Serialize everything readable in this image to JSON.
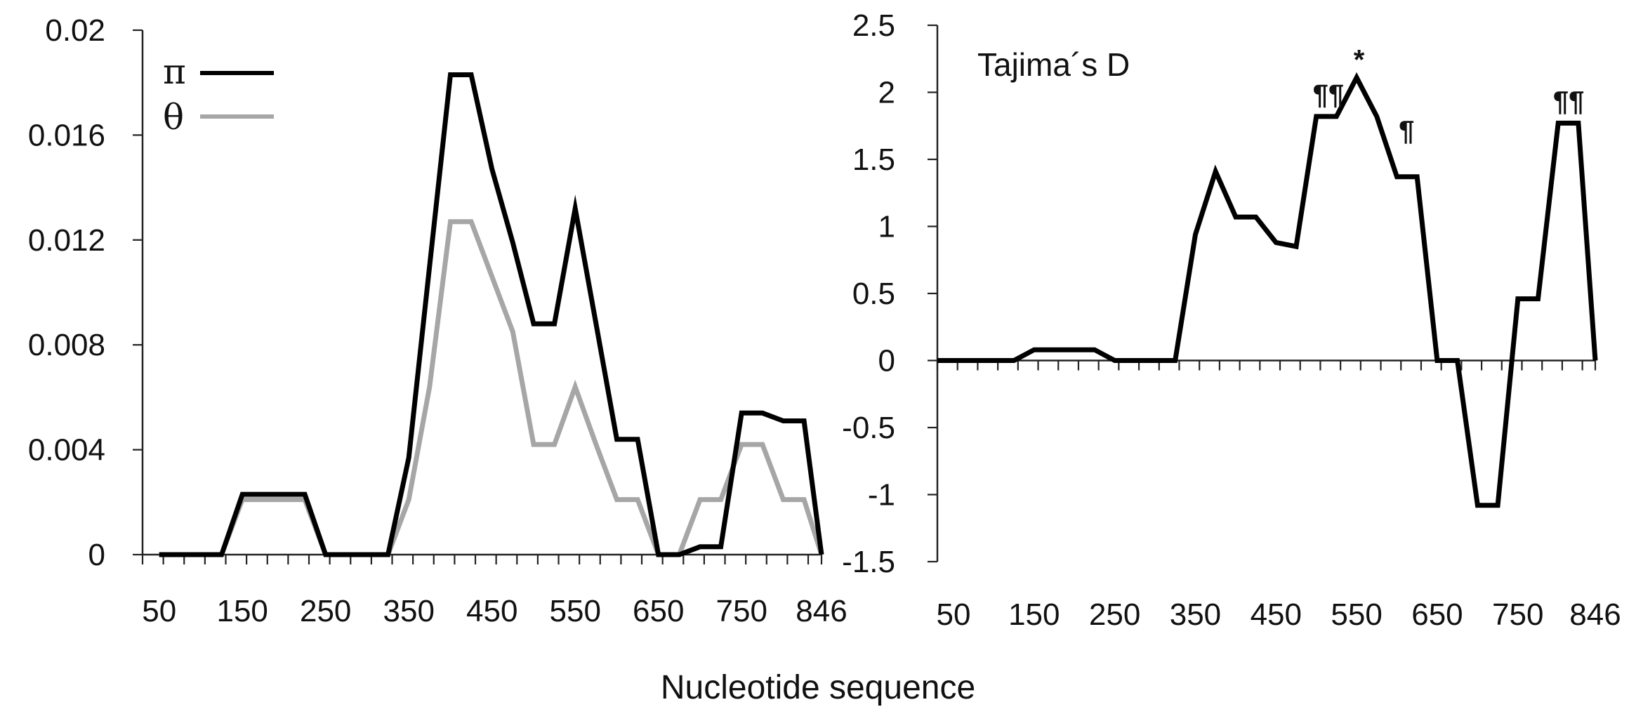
{
  "xlabel": "Nucleotide sequence",
  "chart_data": [
    {
      "type": "line",
      "title": "",
      "xlabel": "",
      "ylabel": "",
      "xlim": [
        30,
        846
      ],
      "ylim": [
        0,
        0.02
      ],
      "yticks": [
        "0",
        "0.004",
        "0.008",
        "0.012",
        "0.016",
        "0.02"
      ],
      "yticks_values": [
        0,
        0.004,
        0.008,
        0.012,
        0.016,
        0.02
      ],
      "xtick_labels": [
        "50",
        "150",
        "250",
        "350",
        "450",
        "550",
        "650",
        "750",
        "846"
      ],
      "xtick_values": [
        50,
        150,
        250,
        350,
        450,
        550,
        650,
        750,
        846
      ],
      "minor_xticks": [
        30,
        55,
        80,
        105,
        130,
        155,
        180,
        205,
        230,
        255,
        280,
        305,
        330,
        355,
        380,
        405,
        430,
        455,
        480,
        505,
        530,
        555,
        580,
        605,
        630,
        655,
        680,
        705,
        730,
        755,
        780,
        805,
        830,
        846
      ],
      "legend_placement": "top-left",
      "grid": false,
      "series": [
        {
          "name": "π",
          "color": "#000000",
          "x": [
            50,
            75,
            100,
            125,
            150,
            175,
            200,
            225,
            250,
            275,
            300,
            325,
            350,
            375,
            400,
            425,
            450,
            475,
            500,
            525,
            550,
            575,
            600,
            625,
            650,
            675,
            700,
            725,
            750,
            775,
            800,
            825,
            846
          ],
          "y": [
            0,
            0,
            0,
            0,
            0.0023,
            0.0023,
            0.0023,
            0.0023,
            0,
            0,
            0,
            0,
            0.0037,
            0.011,
            0.0183,
            0.0183,
            0.0147,
            0.0119,
            0.0088,
            0.0088,
            0.0132,
            0.0088,
            0.0044,
            0.0044,
            0,
            0,
            0.0003,
            0.0003,
            0.0054,
            0.0054,
            0.0051,
            0.0051,
            0
          ]
        },
        {
          "name": "θ",
          "color": "#a6a6a6",
          "x": [
            50,
            75,
            100,
            125,
            150,
            175,
            200,
            225,
            250,
            275,
            300,
            325,
            350,
            375,
            400,
            425,
            450,
            475,
            500,
            525,
            550,
            575,
            600,
            625,
            650,
            675,
            700,
            725,
            750,
            775,
            800,
            825,
            846
          ],
          "y": [
            0,
            0,
            0,
            0,
            0.0021,
            0.0021,
            0.0021,
            0.0021,
            0,
            0,
            0,
            0,
            0.0021,
            0.0064,
            0.0127,
            0.0127,
            0.0106,
            0.0085,
            0.0042,
            0.0042,
            0.0064,
            0.0042,
            0.0021,
            0.0021,
            0,
            0,
            0.0021,
            0.0021,
            0.0042,
            0.0042,
            0.0021,
            0.0021,
            0
          ]
        }
      ]
    },
    {
      "type": "line",
      "title": "Tajima´s D",
      "xlabel": "",
      "ylabel": "",
      "xlim": [
        30,
        846
      ],
      "ylim": [
        -1.5,
        2.5
      ],
      "yticks": [
        "-1.5",
        "-1",
        "-0.5",
        "0",
        "0.5",
        "1",
        "1.5",
        "2",
        "2.5"
      ],
      "yticks_values": [
        -1.5,
        -1,
        -0.5,
        0,
        0.5,
        1,
        1.5,
        2,
        2.5
      ],
      "xtick_labels": [
        "50",
        "150",
        "250",
        "350",
        "450",
        "550",
        "650",
        "750",
        "846"
      ],
      "xtick_values": [
        50,
        150,
        250,
        350,
        450,
        550,
        650,
        750,
        846
      ],
      "minor_xticks": [
        30,
        55,
        80,
        105,
        130,
        155,
        180,
        205,
        230,
        255,
        280,
        305,
        330,
        355,
        380,
        405,
        430,
        455,
        480,
        505,
        530,
        555,
        580,
        605,
        630,
        655,
        680,
        705,
        730,
        755,
        780,
        805,
        830,
        846
      ],
      "grid": false,
      "series": [
        {
          "color": "#000000",
          "x": [
            30,
            50,
            75,
            100,
            125,
            150,
            175,
            200,
            225,
            250,
            275,
            300,
            325,
            350,
            375,
            400,
            425,
            450,
            475,
            500,
            525,
            550,
            575,
            600,
            625,
            650,
            675,
            700,
            725,
            750,
            775,
            800,
            825,
            846
          ],
          "y": [
            0,
            0,
            0,
            0,
            0,
            0.08,
            0.08,
            0.08,
            0.08,
            0,
            0,
            0,
            0,
            0.94,
            1.41,
            1.07,
            1.07,
            0.88,
            0.85,
            1.82,
            1.82,
            2.11,
            1.82,
            1.37,
            1.37,
            0,
            0,
            -1.08,
            -1.08,
            0.46,
            0.46,
            1.77,
            1.77,
            0
          ]
        }
      ],
      "annotations": [
        {
          "text": "¶¶",
          "x": 515,
          "y": 1.82
        },
        {
          "text": "*",
          "x": 553,
          "y": 2.11
        },
        {
          "text": "¶",
          "x": 612,
          "y": 1.55
        },
        {
          "text": "¶¶",
          "x": 813,
          "y": 1.77
        }
      ]
    }
  ]
}
